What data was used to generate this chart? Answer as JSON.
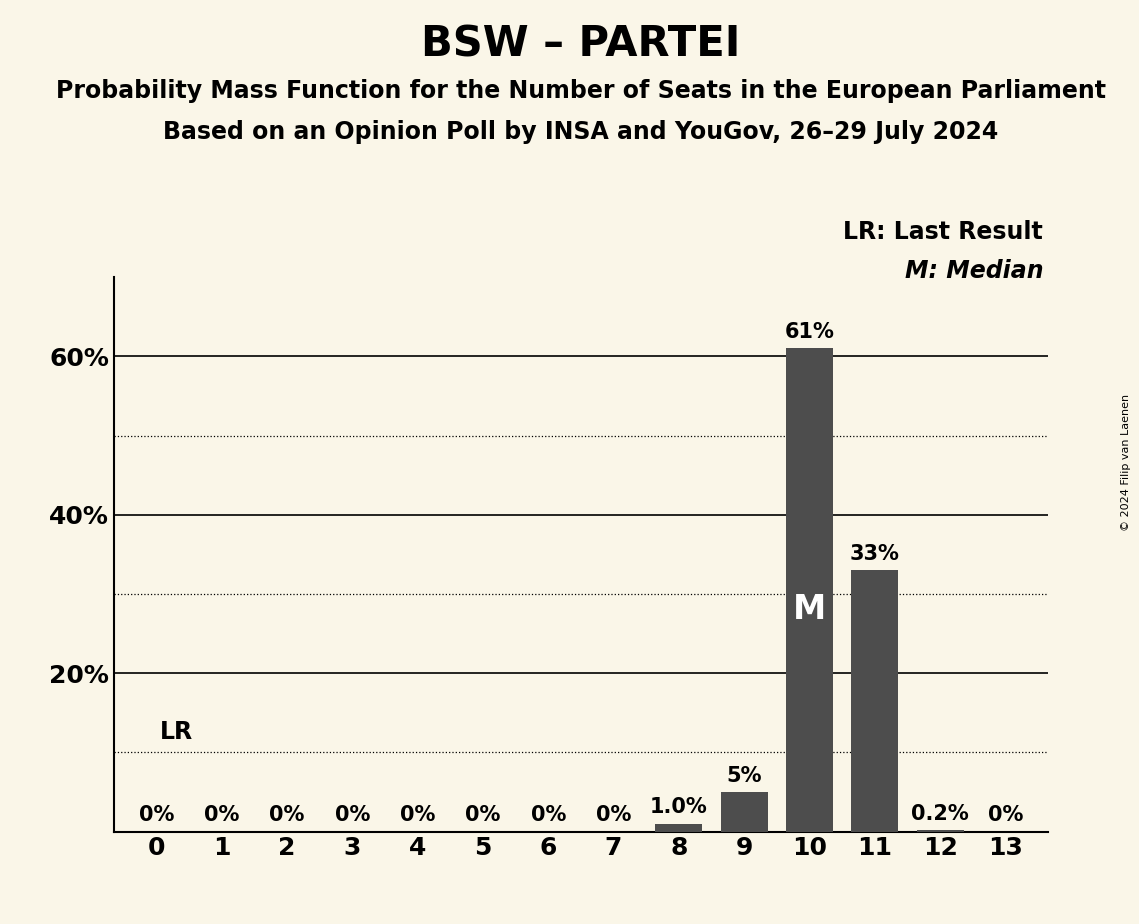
{
  "title": "BSW – PARTEI",
  "subtitle1": "Probability Mass Function for the Number of Seats in the European Parliament",
  "subtitle2": "Based on an Opinion Poll by INSA and YouGov, 26–29 July 2024",
  "copyright": "© 2024 Filip van Laenen",
  "seats": [
    0,
    1,
    2,
    3,
    4,
    5,
    6,
    7,
    8,
    9,
    10,
    11,
    12,
    13
  ],
  "probabilities": [
    0.0,
    0.0,
    0.0,
    0.0,
    0.0,
    0.0,
    0.0,
    0.0,
    1.0,
    5.0,
    61.0,
    33.0,
    0.2,
    0.0
  ],
  "bar_color": "#4d4d4d",
  "background_color": "#faf6e8",
  "last_result_seat": 0,
  "median_seat": 10,
  "bar_labels": [
    "0%",
    "0%",
    "0%",
    "0%",
    "0%",
    "0%",
    "0%",
    "0%",
    "1.0%",
    "5%",
    "61%",
    "33%",
    "0.2%",
    "0%"
  ],
  "ylim_max": 70,
  "yticks": [
    20,
    40,
    60
  ],
  "solid_gridlines": [
    20,
    40,
    60
  ],
  "dotted_gridlines": [
    10,
    30,
    50
  ],
  "legend_lr": "LR: Last Result",
  "legend_m": "M: Median",
  "lr_label": "LR",
  "m_label": "M",
  "title_fontsize": 30,
  "subtitle_fontsize": 17,
  "bar_label_fontsize": 15,
  "tick_fontsize": 18,
  "legend_fontsize": 17,
  "lr_fontsize": 17,
  "m_fontsize": 24,
  "copyright_fontsize": 8
}
